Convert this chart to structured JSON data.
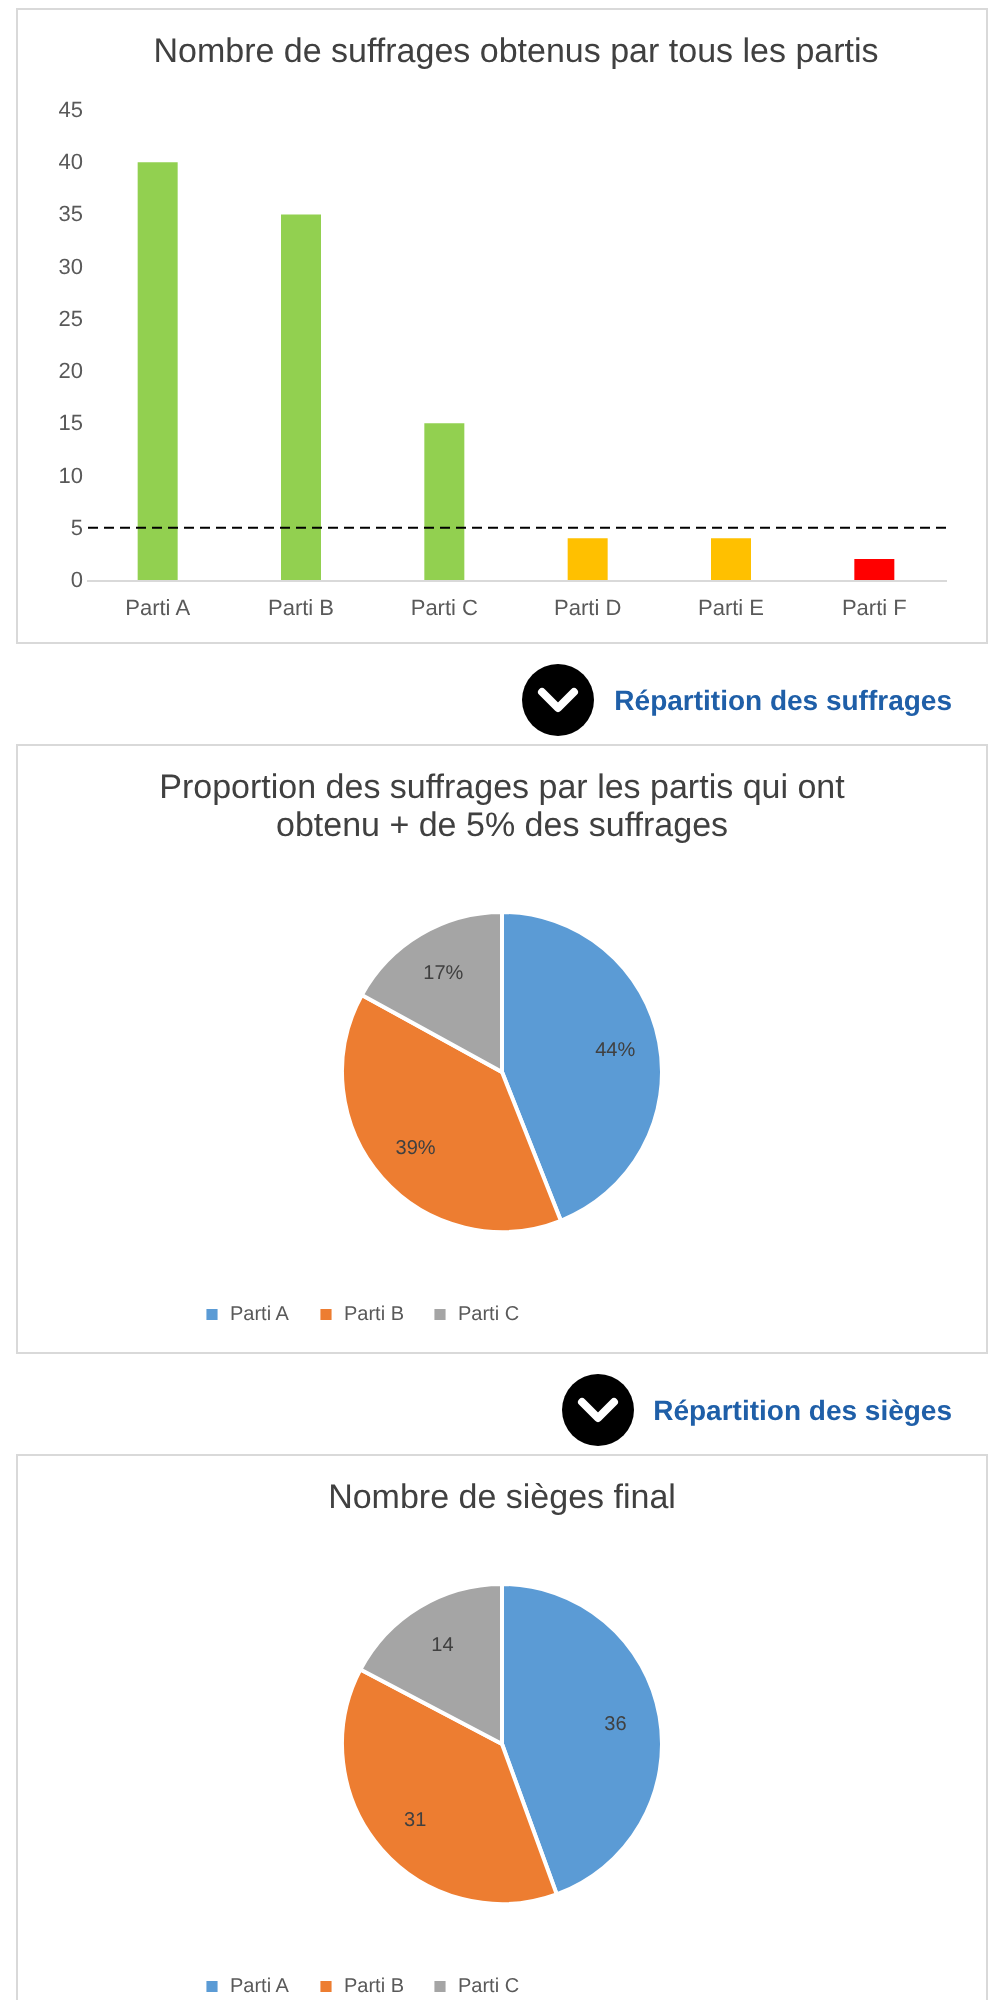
{
  "chart_data": [
    {
      "type": "bar",
      "title": "Nombre de suffrages obtenus par tous les partis",
      "categories": [
        "Parti A",
        "Parti B",
        "Parti C",
        "Parti D",
        "Parti E",
        "Parti F"
      ],
      "values": [
        40,
        35,
        15,
        4,
        4,
        2
      ],
      "colors": [
        "#92d050",
        "#92d050",
        "#92d050",
        "#ffc000",
        "#ffc000",
        "#ff0000"
      ],
      "ylim": [
        0,
        45
      ],
      "yticks": [
        0,
        5,
        10,
        15,
        20,
        25,
        30,
        35,
        40,
        45
      ],
      "ref_lines": [
        {
          "axis": "y",
          "value": 5,
          "color": "#000000",
          "line_style": "dashed"
        }
      ]
    },
    {
      "type": "pie",
      "annotations": [
        "Répartition des suffrages"
      ],
      "title": "Proportion des suffrages par les partis qui ont\nobtenu + de 5% des suffrages",
      "categories": [
        "Parti A",
        "Parti B",
        "Parti C"
      ],
      "values": [
        44,
        39,
        17
      ],
      "colors": [
        "#5b9bd5",
        "#ed7d31",
        "#a5a5a5"
      ],
      "value_labels": [
        "44%",
        "39%",
        "17%"
      ],
      "legend": "bottom"
    },
    {
      "type": "pie",
      "annotations": [
        "Répartition des sièges"
      ],
      "title": "Nombre de sièges final",
      "categories": [
        "Parti A",
        "Parti B",
        "Parti C"
      ],
      "values": [
        36,
        31,
        14
      ],
      "colors": [
        "#5b9bd5",
        "#ed7d31",
        "#a5a5a5"
      ],
      "data_labels": true,
      "legend": "bottom"
    }
  ]
}
